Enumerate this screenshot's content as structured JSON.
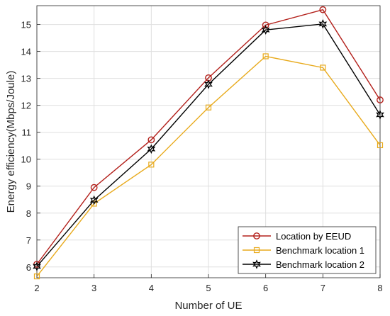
{
  "chart_data": {
    "type": "line",
    "xlabel": "Number of UE",
    "ylabel": "Energy efficiency(Mbps/Joule)",
    "x": [
      2,
      3,
      4,
      5,
      6,
      7,
      8
    ],
    "xlim": [
      2,
      8
    ],
    "ylim": [
      5.6,
      15.7
    ],
    "xticks": [
      "2",
      "3",
      "4",
      "5",
      "6",
      "7",
      "8"
    ],
    "yticks": [
      "6",
      "7",
      "8",
      "9",
      "10",
      "11",
      "12",
      "13",
      "14",
      "15"
    ],
    "grid": true,
    "legend_position": "bottom-right",
    "series": [
      {
        "name": "Location by EEUD",
        "values": [
          6.1,
          8.95,
          10.72,
          13.02,
          14.98,
          15.55,
          12.2
        ],
        "color": "#b3201b",
        "marker": "circle"
      },
      {
        "name": "Benchmark location 1",
        "values": [
          5.65,
          8.35,
          9.8,
          11.92,
          13.82,
          13.4,
          10.52
        ],
        "color": "#e8aa1c",
        "marker": "square"
      },
      {
        "name": "Benchmark location 2",
        "values": [
          6.02,
          8.48,
          10.38,
          12.78,
          14.8,
          15.02,
          11.65
        ],
        "color": "#000000",
        "marker": "hexagram"
      }
    ]
  }
}
